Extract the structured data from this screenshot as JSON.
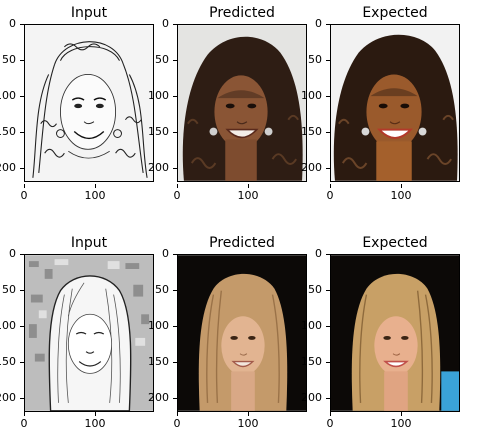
{
  "rows": [
    {
      "panels": [
        {
          "title": "Input",
          "kind": "sketch",
          "subject": "curly-hair-woman",
          "yticks": [
            "0",
            "50",
            "100",
            "150",
            "200"
          ],
          "xticks": [
            "0",
            "100"
          ]
        },
        {
          "title": "Predicted",
          "kind": "photo",
          "subject": "curly-hair-woman",
          "yticks": [
            "0",
            "50",
            "100",
            "150",
            "200"
          ],
          "xticks": [
            "0",
            "100"
          ]
        },
        {
          "title": "Expected",
          "kind": "photo",
          "subject": "curly-hair-woman",
          "yticks": [
            "0",
            "50",
            "100",
            "150",
            "200"
          ],
          "xticks": [
            "0",
            "100"
          ]
        }
      ]
    },
    {
      "panels": [
        {
          "title": "Input",
          "kind": "sketch",
          "subject": "blonde-woman",
          "yticks": [
            "0",
            "50",
            "100",
            "150",
            "200"
          ],
          "xticks": [
            "0",
            "100"
          ]
        },
        {
          "title": "Predicted",
          "kind": "photo",
          "subject": "blonde-woman",
          "yticks": [
            "0",
            "50",
            "100",
            "150",
            "200"
          ],
          "xticks": [
            "0",
            "100"
          ]
        },
        {
          "title": "Expected",
          "kind": "photo",
          "subject": "blonde-woman",
          "yticks": [
            "0",
            "50",
            "100",
            "150",
            "200"
          ],
          "xticks": [
            "0",
            "100"
          ]
        }
      ]
    }
  ],
  "colors": {
    "sketch_bg": "#f4f4f4",
    "ink": "#222222",
    "curly_hair": "#2e1d14",
    "curly_skin_pred": "#8a5535",
    "curly_skin_exp": "#9a5a2c",
    "light_bg_pred": "#e4e4e2",
    "light_bg_exp": "#f2f2f2",
    "blonde_hair_pred": "#c49a6a",
    "blonde_hair_exp": "#c8a066",
    "blonde_skin_pred": "#e2b491",
    "blonde_skin_exp": "#e8b08e",
    "dark_bg": "#0c0907"
  }
}
